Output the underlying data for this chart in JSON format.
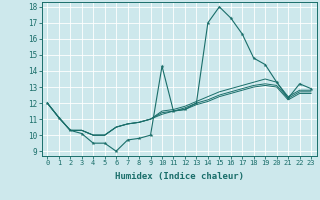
{
  "title": "",
  "xlabel": "Humidex (Indice chaleur)",
  "ylabel": "",
  "bg_color": "#cde8ec",
  "grid_color": "#ffffff",
  "line_color": "#1a6e6a",
  "xlim": [
    -0.5,
    23.5
  ],
  "ylim": [
    8.7,
    18.3
  ],
  "xticks": [
    0,
    1,
    2,
    3,
    4,
    5,
    6,
    7,
    8,
    9,
    10,
    11,
    12,
    13,
    14,
    15,
    16,
    17,
    18,
    19,
    20,
    21,
    22,
    23
  ],
  "yticks": [
    9,
    10,
    11,
    12,
    13,
    14,
    15,
    16,
    17,
    18
  ],
  "series_main": [
    12.0,
    11.1,
    10.3,
    10.1,
    9.5,
    9.5,
    9.0,
    9.7,
    9.8,
    10.0,
    14.3,
    11.5,
    11.6,
    12.0,
    17.0,
    18.0,
    17.3,
    16.3,
    14.8,
    14.4,
    13.3,
    12.3,
    13.2,
    12.9
  ],
  "series_other": [
    [
      12.0,
      11.1,
      10.3,
      10.3,
      10.0,
      10.0,
      10.5,
      10.7,
      10.8,
      11.0,
      11.5,
      11.6,
      11.8,
      12.1,
      12.4,
      12.7,
      12.9,
      13.1,
      13.3,
      13.5,
      13.3,
      12.4,
      12.8,
      12.8
    ],
    [
      12.0,
      11.1,
      10.3,
      10.3,
      10.0,
      10.0,
      10.5,
      10.7,
      10.8,
      11.0,
      11.4,
      11.5,
      11.7,
      12.0,
      12.2,
      12.5,
      12.7,
      12.9,
      13.1,
      13.2,
      13.1,
      12.3,
      12.7,
      12.7
    ],
    [
      12.0,
      11.1,
      10.3,
      10.3,
      10.0,
      10.0,
      10.5,
      10.7,
      10.8,
      11.0,
      11.3,
      11.5,
      11.6,
      11.9,
      12.1,
      12.4,
      12.6,
      12.8,
      13.0,
      13.1,
      13.0,
      12.2,
      12.6,
      12.6
    ]
  ],
  "xlabel_fontsize": 6.5,
  "tick_fontsize": 5.0
}
